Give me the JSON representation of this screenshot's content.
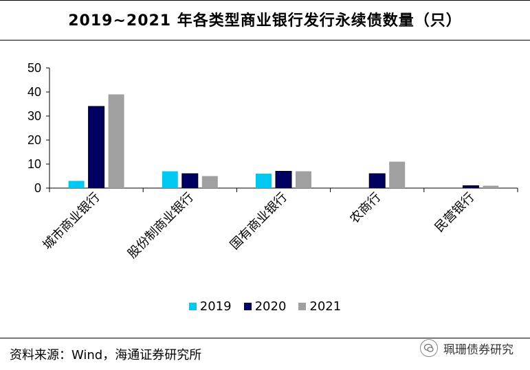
{
  "title": "2019~2021 年各类型商业银行发行永续债数量（只）",
  "source": "资料来源：Wind，海通证券研究所",
  "watermark": "珮珊债券研究",
  "legend": [
    {
      "label": "2019",
      "color": "#00C8F0"
    },
    {
      "label": "2020",
      "color": "#000060"
    },
    {
      "label": "2021",
      "color": "#A0A0A0"
    }
  ],
  "chart_data": {
    "type": "bar",
    "categories": [
      "城市商业银行",
      "股份制商业银行",
      "国有商业银行",
      "农商行",
      "民营银行"
    ],
    "series": [
      {
        "name": "2019",
        "color": "#00C8F0",
        "values": [
          3,
          7,
          6,
          0,
          0
        ]
      },
      {
        "name": "2020",
        "color": "#000060",
        "values": [
          34,
          6,
          7,
          6,
          1
        ]
      },
      {
        "name": "2021",
        "color": "#A0A0A0",
        "values": [
          39,
          5,
          7,
          11,
          1
        ]
      }
    ],
    "ylim": [
      0,
      50
    ],
    "yticks": [
      0,
      10,
      20,
      30,
      40,
      50
    ],
    "grid": false,
    "legend_position": "bottom"
  }
}
